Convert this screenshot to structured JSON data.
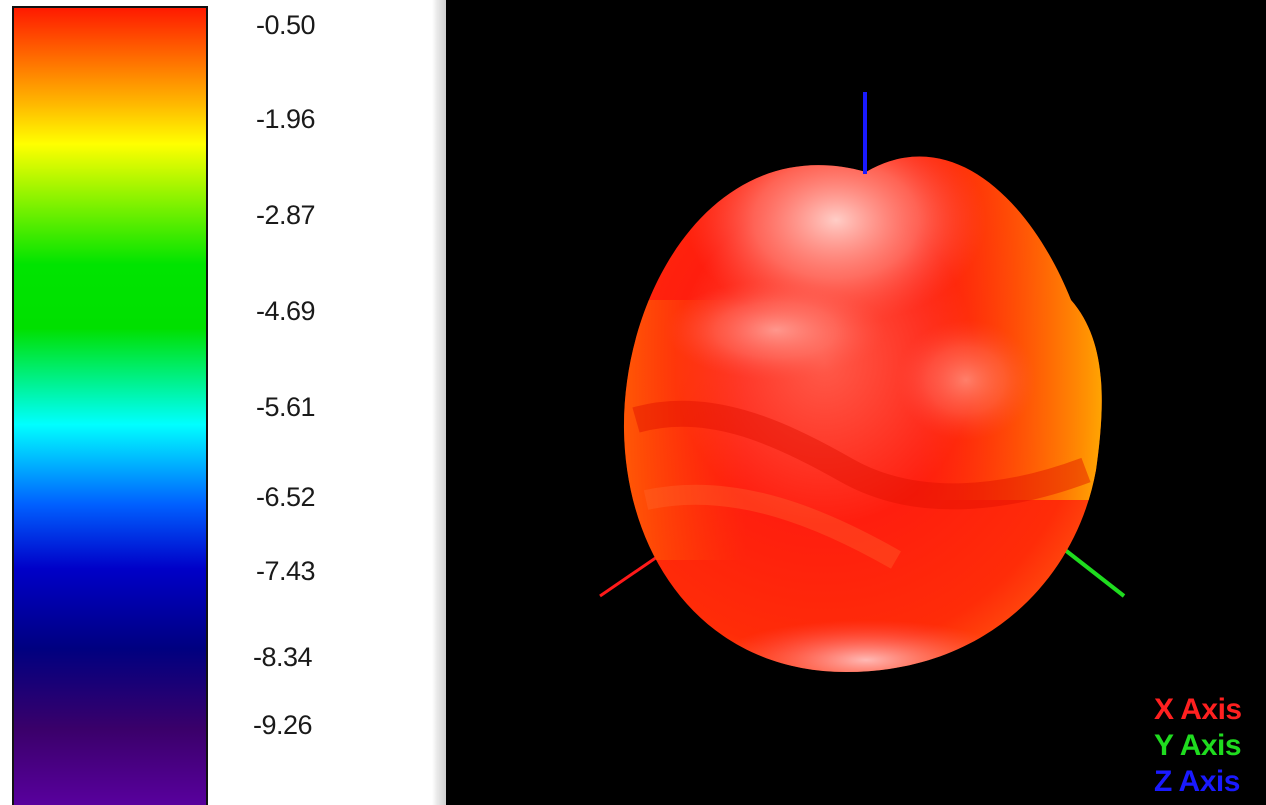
{
  "colorbar": {
    "stops": [
      "#ff1a00",
      "#ffb800",
      "#ffff00",
      "#00e400",
      "#00e000",
      "#00ffff",
      "#0060ff",
      "#0000c8",
      "#000080",
      "#3a006a",
      "#5a00a0"
    ],
    "ticks": [
      "-0.50",
      "-1.96",
      "-2.87",
      "-4.69",
      "-5.61",
      "-6.52",
      "-7.43",
      "-8.34",
      "-9.26"
    ]
  },
  "chart_data": {
    "type": "3d-radiation-pattern",
    "colorscale_values": [
      -0.5,
      -1.96,
      -2.87,
      -4.69,
      -5.61,
      -6.52,
      -7.43,
      -8.34,
      -9.26
    ],
    "background": "#000000",
    "axes": [
      {
        "label": "X Axis",
        "color": "#ff2020"
      },
      {
        "label": "Y Axis",
        "color": "#1fdc1f"
      },
      {
        "label": "Z Axis",
        "color": "#1a1aff"
      }
    ]
  },
  "axis_legend": {
    "x": "X Axis",
    "y": "Y Axis",
    "z": "Z Axis",
    "colors": {
      "x": "#ff2020",
      "y": "#1fdc1f",
      "z": "#1a1aff"
    }
  }
}
